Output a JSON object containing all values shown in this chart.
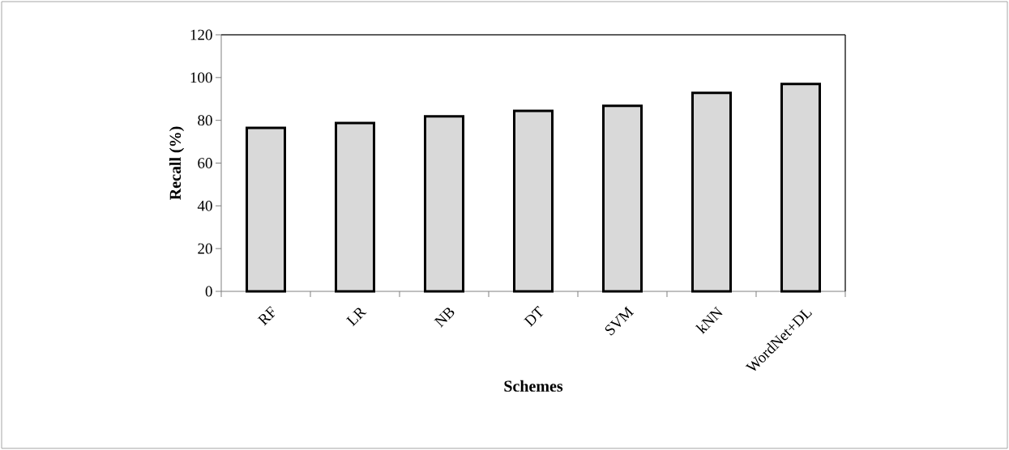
{
  "chart_data": {
    "type": "bar",
    "xlabel": "Schemes",
    "ylabel": "Recall (%)",
    "categories": [
      "RF",
      "LR",
      "NB",
      "DT",
      "SVM",
      "kNN",
      "WordNet+DL"
    ],
    "values": [
      76.5,
      78.7,
      81.9,
      84.4,
      86.8,
      92.8,
      97.0
    ],
    "color": "#d9d9d9",
    "ylim": [
      0,
      120
    ],
    "yticks": [
      0,
      20,
      40,
      60,
      80,
      100,
      120
    ]
  }
}
